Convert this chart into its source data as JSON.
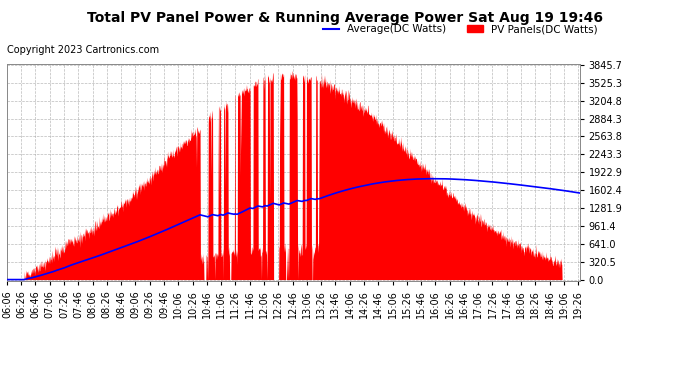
{
  "title": "Total PV Panel Power & Running Average Power Sat Aug 19 19:46",
  "copyright": "Copyright 2023 Cartronics.com",
  "legend_avg": "Average(DC Watts)",
  "legend_pv": "PV Panels(DC Watts)",
  "yticks": [
    0.0,
    320.5,
    641.0,
    961.4,
    1281.9,
    1602.4,
    1922.9,
    2243.3,
    2563.8,
    2884.3,
    3204.8,
    3525.3,
    3845.7
  ],
  "ymax": 3845.7,
  "background_color": "#ffffff",
  "plot_bg_color": "#ffffff",
  "grid_color": "#aaaaaa",
  "pv_color": "red",
  "avg_color": "blue",
  "title_fontsize": 10,
  "copyright_fontsize": 7,
  "tick_fontsize": 7,
  "legend_fontsize": 7.5,
  "x_start_hour": 6,
  "x_start_min": 6,
  "x_end_hour": 19,
  "x_end_min": 28,
  "x_interval_min": 20
}
